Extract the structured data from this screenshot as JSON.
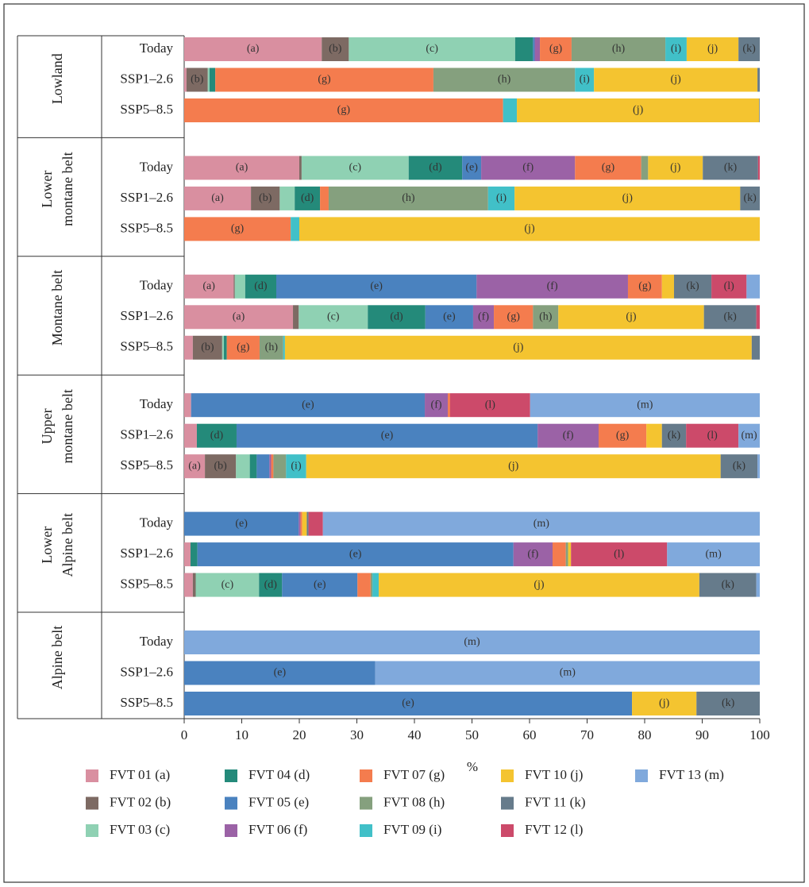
{
  "chart_data": {
    "type": "stacked_bar_horizontal",
    "groups": [
      [
        "Lowland"
      ],
      [
        "Lower",
        "montane belt"
      ],
      [
        "Montane belt"
      ],
      [
        "Upper",
        "montane belt"
      ],
      [
        "Lower",
        "Alpine belt"
      ],
      [
        "Alpine belt"
      ]
    ],
    "categories": [
      "Today",
      "SSP1–2.6",
      "SSP5–8.5",
      "Today",
      "SSP1–2.6",
      "SSP5–8.5",
      "Today",
      "SSP1–2.6",
      "SSP5–8.5",
      "Today",
      "SSP1–2.6",
      "SSP5–8.5",
      "Today",
      "SSP1–2.6",
      "SSP5–8.5",
      "Today",
      "SSP1–2.6",
      "SSP5–8.5"
    ],
    "series": [
      {
        "name": "FVT 01 (a)",
        "label": "(a)",
        "color": "#d98fa0",
        "values": [
          23.9,
          0.4,
          0,
          20.0,
          11.6,
          0,
          8.6,
          18.9,
          1.5,
          1.2,
          2.2,
          3.6,
          0,
          1.1,
          1.5,
          0,
          0,
          0
        ]
      },
      {
        "name": "FVT 02 (b)",
        "label": "(b)",
        "color": "#7d6a63",
        "values": [
          4.7,
          3.7,
          0,
          0.4,
          5.0,
          0,
          0.2,
          1.0,
          5.1,
          0,
          0,
          5.4,
          0,
          0,
          0.5,
          0,
          0,
          0
        ]
      },
      {
        "name": "FVT 03 (c)",
        "label": "(c)",
        "color": "#8fd1b3",
        "values": [
          28.9,
          0.3,
          0,
          18.6,
          2.6,
          0,
          1.8,
          12.0,
          0.3,
          0,
          0,
          2.4,
          0,
          0,
          11.0,
          0,
          0,
          0
        ]
      },
      {
        "name": "FVT 04 (d)",
        "label": "(d)",
        "color": "#248a7a",
        "values": [
          3.1,
          1.0,
          0,
          9.3,
          4.4,
          0,
          5.4,
          10.0,
          0.5,
          0,
          6.9,
          1.2,
          0,
          1.2,
          4.0,
          0,
          0,
          0
        ]
      },
      {
        "name": "FVT 05 (e)",
        "label": "(e)",
        "color": "#4a82bf",
        "values": [
          0.3,
          0,
          0,
          3.3,
          0,
          0,
          34.8,
          8.3,
          0,
          40.6,
          52.3,
          2.2,
          19.9,
          54.9,
          13.1,
          0,
          33.2,
          77.8
        ]
      },
      {
        "name": "FVT 06 (f)",
        "label": "(f)",
        "color": "#9b62a6",
        "values": [
          0.9,
          0,
          0,
          16.3,
          0,
          0,
          26.3,
          3.6,
          0,
          4.0,
          10.6,
          0.3,
          0.3,
          6.8,
          0,
          0,
          0,
          0
        ]
      },
      {
        "name": "FVT 07 (g)",
        "label": "(g)",
        "color": "#f47c4e",
        "values": [
          5.5,
          37.9,
          55.4,
          11.5,
          1.5,
          18.5,
          5.9,
          6.8,
          5.7,
          0.4,
          8.3,
          0.4,
          0.3,
          2.3,
          2.3,
          0,
          0,
          0
        ]
      },
      {
        "name": "FVT 08 (h)",
        "label": "(h)",
        "color": "#85a07e",
        "values": [
          16.3,
          24.6,
          0,
          1.2,
          27.7,
          0,
          0,
          4.4,
          4.1,
          0,
          0,
          2.2,
          0,
          0.4,
          0.3,
          0,
          0,
          0
        ]
      },
      {
        "name": "FVT 09 (i)",
        "label": "(i)",
        "color": "#41c0c8",
        "values": [
          3.7,
          3.3,
          2.4,
          0,
          4.6,
          1.5,
          0,
          0,
          0.3,
          0,
          0,
          3.5,
          0,
          0,
          1.1,
          0,
          0,
          0
        ]
      },
      {
        "name": "FVT 10 (j)",
        "label": "(j)",
        "color": "#f4c430",
        "values": [
          9.0,
          28.4,
          42.1,
          9.5,
          39.2,
          80.0,
          2.1,
          25.3,
          81.1,
          0,
          2.7,
          72.0,
          0.8,
          0.5,
          55.7,
          0,
          0,
          11.2
        ]
      },
      {
        "name": "FVT 11 (k)",
        "label": "(k)",
        "color": "#667b8b",
        "values": [
          3.7,
          0.4,
          0.1,
          9.6,
          3.4,
          0,
          6.5,
          9.1,
          1.4,
          0,
          4.2,
          6.4,
          0.3,
          0,
          9.9,
          0,
          0,
          11.0
        ]
      },
      {
        "name": "FVT 12 (l)",
        "label": "(l)",
        "color": "#cc4a6a",
        "values": [
          0,
          0,
          0,
          0.3,
          0,
          0,
          6.1,
          0.6,
          0,
          13.9,
          9.1,
          0,
          2.5,
          16.7,
          0,
          0,
          0,
          0
        ]
      },
      {
        "name": "FVT 13 (m)",
        "label": "(m)",
        "color": "#80a9dc",
        "values": [
          0,
          0,
          0,
          0,
          0,
          0,
          2.3,
          0,
          0,
          39.9,
          3.7,
          0.4,
          75.9,
          16.1,
          0.6,
          100,
          66.8,
          0
        ]
      }
    ],
    "xlabel": "%",
    "xlim": [
      0,
      100
    ],
    "xticks": [
      0,
      10,
      20,
      30,
      40,
      50,
      60,
      70,
      80,
      90,
      100
    ]
  }
}
